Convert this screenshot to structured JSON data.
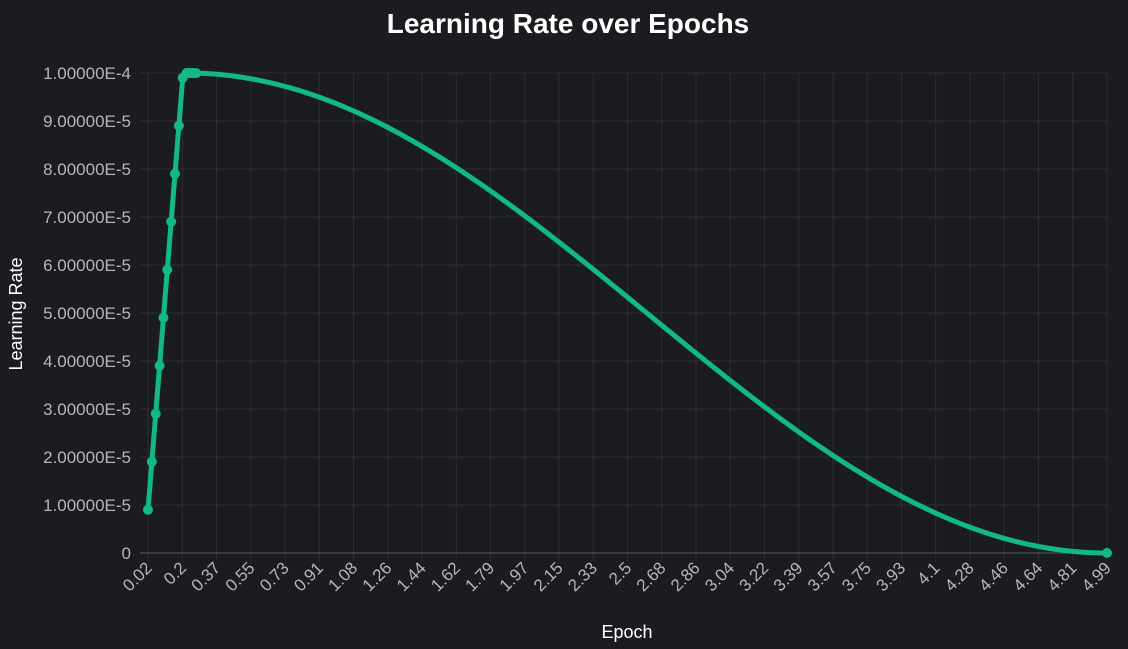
{
  "colors": {
    "background": "#1b1c20",
    "grid": "#2c2e33",
    "line": "#12b886",
    "title": "#ffffff",
    "tick": "#b4b6bb"
  },
  "chart_data": {
    "type": "line",
    "title": "Learning Rate over Epochs",
    "xlabel": "Epoch",
    "ylabel": "Learning Rate",
    "xlim": [
      0.02,
      4.99
    ],
    "ylim": [
      0,
      0.0001
    ],
    "grid": true,
    "legend": "none",
    "x_tick_labels": [
      "0.02",
      "0.2",
      "0.37",
      "0.55",
      "0.73",
      "0.91",
      "1.08",
      "1.26",
      "1.44",
      "1.62",
      "1.79",
      "1.97",
      "2.15",
      "2.33",
      "2.5",
      "2.68",
      "2.86",
      "3.04",
      "3.22",
      "3.39",
      "3.57",
      "3.75",
      "3.93",
      "4.1",
      "4.28",
      "4.46",
      "4.64",
      "4.81",
      "4.99"
    ],
    "y_tick_labels": [
      "0",
      "1.00000E-5",
      "2.00000E-5",
      "3.00000E-5",
      "4.00000E-5",
      "5.00000E-5",
      "6.00000E-5",
      "7.00000E-5",
      "8.00000E-5",
      "9.00000E-5",
      "1.00000E-4"
    ],
    "series": [
      {
        "color": "#12b886",
        "warmup_points": [
          {
            "x": 0.02,
            "y": 9e-06
          },
          {
            "x": 0.04,
            "y": 1.9e-05
          },
          {
            "x": 0.06,
            "y": 2.9e-05
          },
          {
            "x": 0.08,
            "y": 3.9e-05
          },
          {
            "x": 0.1,
            "y": 4.9e-05
          },
          {
            "x": 0.12,
            "y": 5.9e-05
          },
          {
            "x": 0.14,
            "y": 6.9e-05
          },
          {
            "x": 0.16,
            "y": 7.9e-05
          },
          {
            "x": 0.18,
            "y": 8.9e-05
          },
          {
            "x": 0.2,
            "y": 9.9e-05
          }
        ],
        "decay": {
          "shape": "cosine",
          "start": {
            "x": 0.22,
            "y": 0.0001
          },
          "end": {
            "x": 4.99,
            "y": 0.0
          }
        }
      }
    ]
  }
}
